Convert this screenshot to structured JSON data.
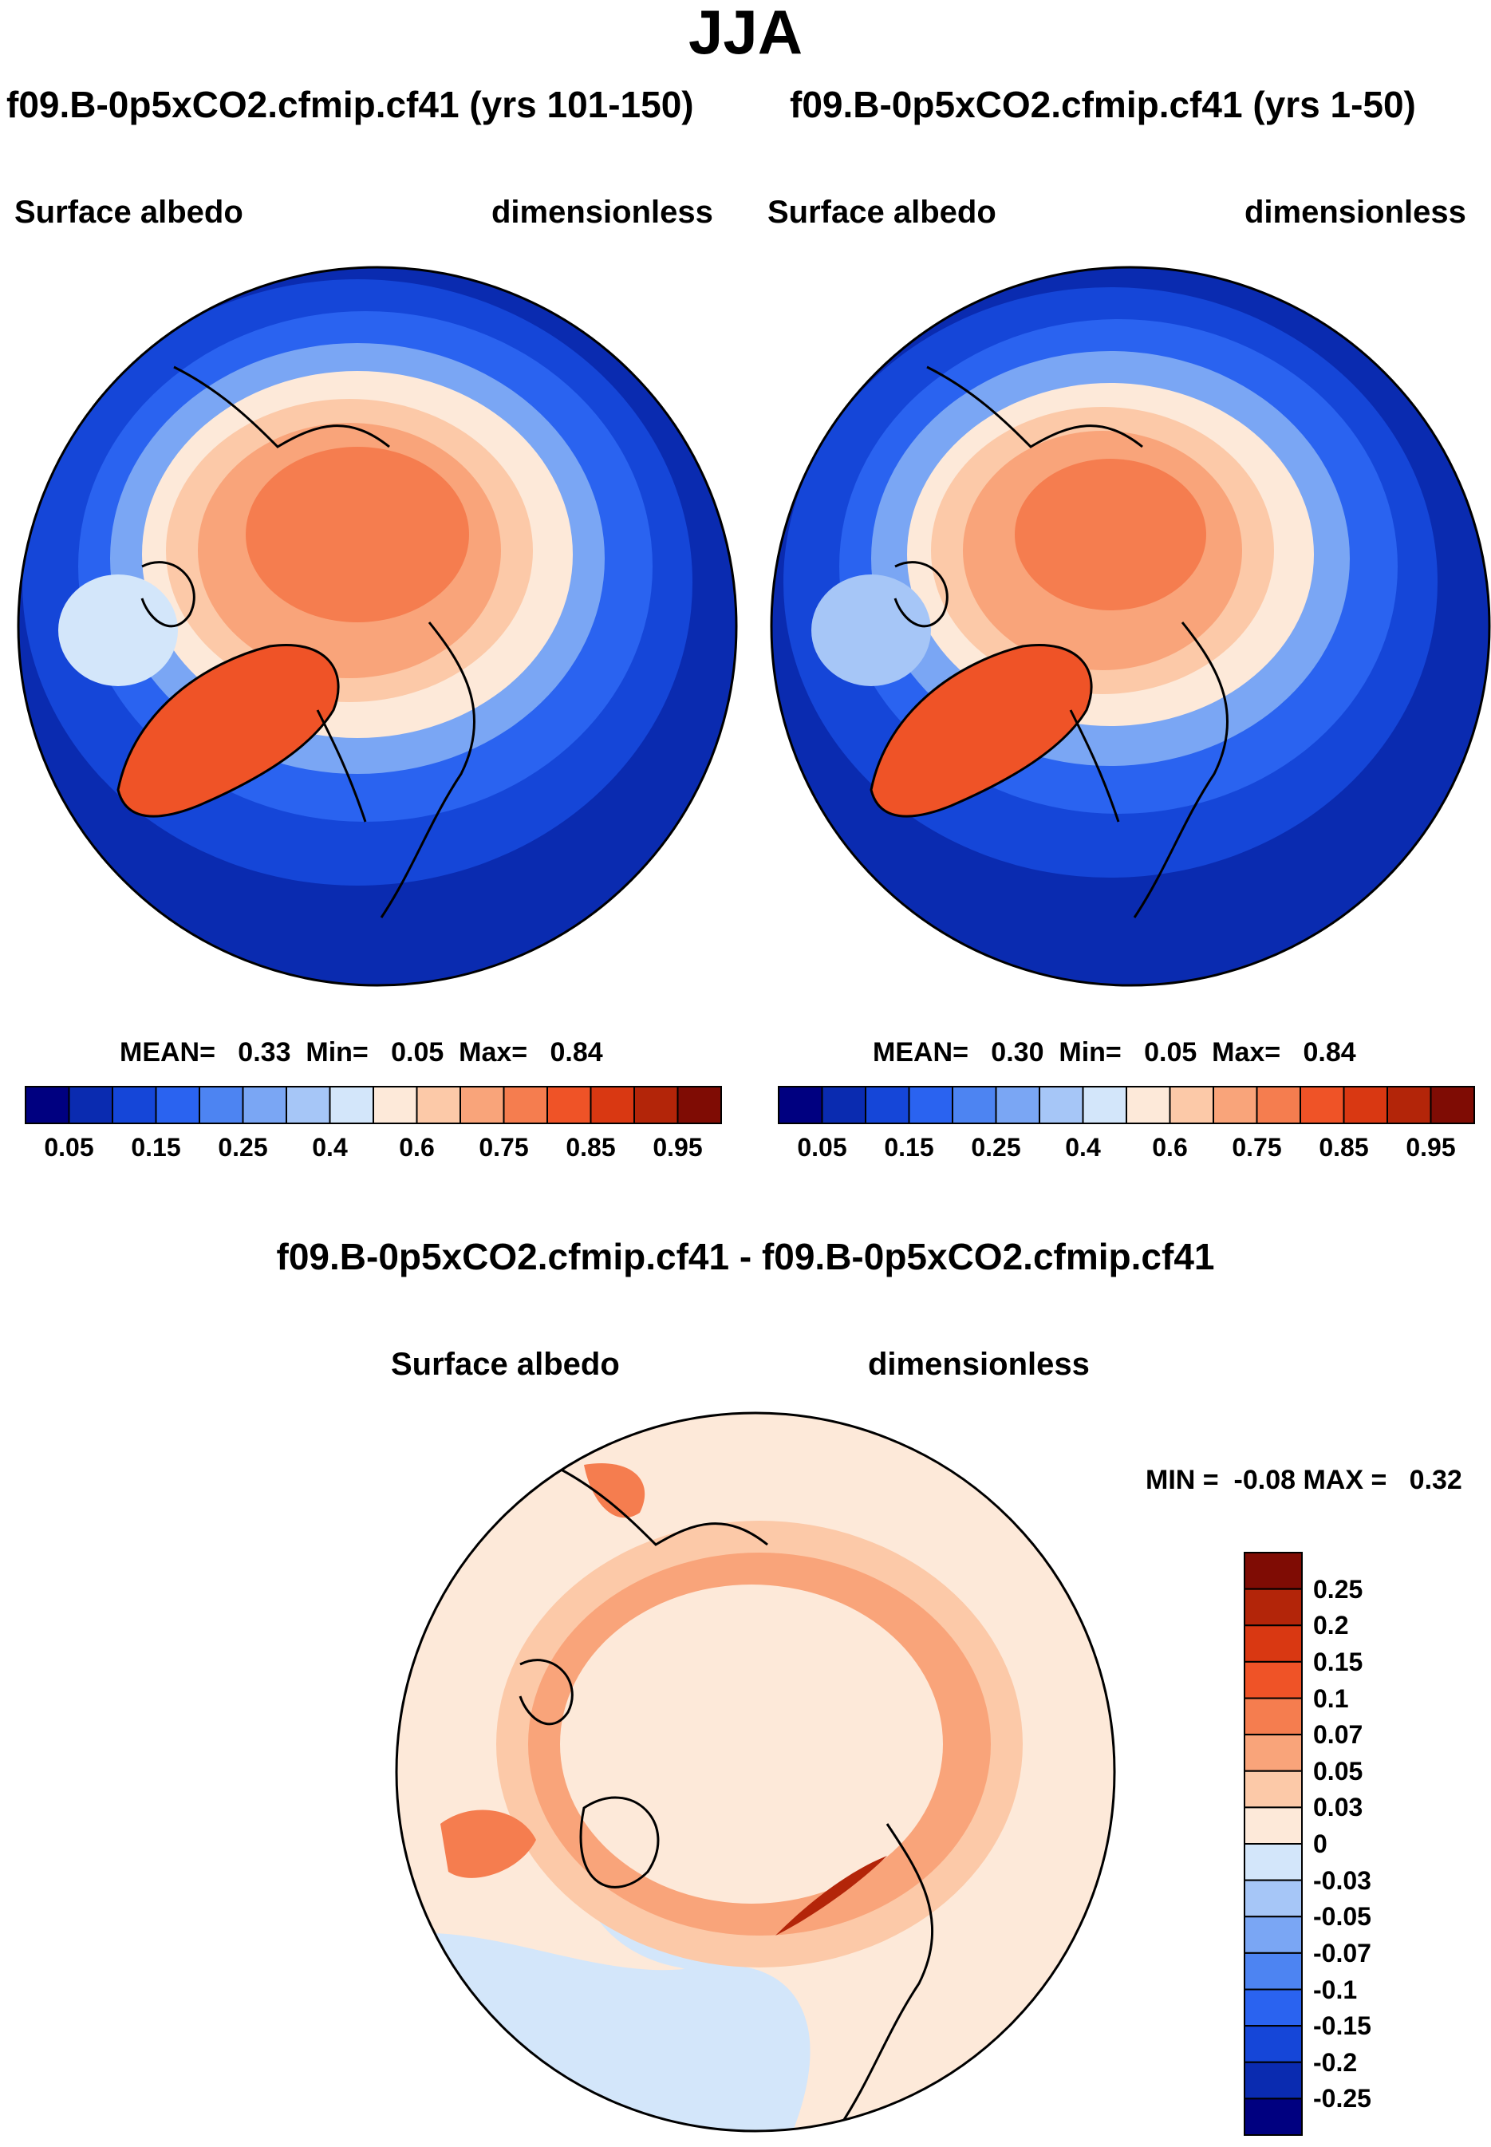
{
  "page_title": "JJA",
  "panels": [
    {
      "case_title": "f09.B-0p5xCO2.cfmip.cf41 (yrs 101-150)",
      "variable": "Surface albedo",
      "units": "dimensionless",
      "stats": "MEAN=   0.33  Min=   0.05  Max=   0.84"
    },
    {
      "case_title": "f09.B-0p5xCO2.cfmip.cf41 (yrs 1-50)",
      "variable": "Surface albedo",
      "units": "dimensionless",
      "stats": "MEAN=   0.30  Min=   0.05  Max=   0.84"
    }
  ],
  "top_colorbar": {
    "colors": [
      "#000080",
      "#0a2bb0",
      "#1546d8",
      "#2a63f0",
      "#4d84f2",
      "#7aa6f4",
      "#a6c6f7",
      "#d3e6fa",
      "#fde9d9",
      "#fcc9a8",
      "#f9a47a",
      "#f57d4f",
      "#ef5327",
      "#d93812",
      "#b32509",
      "#7f0c04"
    ],
    "ticks": [
      "0.05",
      "0.15",
      "0.25",
      "0.4",
      "0.6",
      "0.75",
      "0.85",
      "0.95"
    ]
  },
  "diff_panel": {
    "title": "f09.B-0p5xCO2.cfmip.cf41 - f09.B-0p5xCO2.cfmip.cf41",
    "variable": "Surface albedo",
    "units": "dimensionless",
    "stats": "MIN =  -0.08 MAX =   0.32"
  },
  "diff_colorbar": {
    "colors": [
      "#7f0c04",
      "#b32509",
      "#d93812",
      "#ef5327",
      "#f57d4f",
      "#f9a47a",
      "#fcc9a8",
      "#fde9d9",
      "#d3e6fa",
      "#a6c6f7",
      "#7aa6f4",
      "#4d84f2",
      "#2a63f0",
      "#1546d8",
      "#0a2bb0",
      "#000080"
    ],
    "ticks": [
      "0.25",
      "0.2",
      "0.15",
      "0.1",
      "0.07",
      "0.05",
      "0.03",
      "0",
      "-0.03",
      "-0.05",
      "-0.07",
      "-0.1",
      "-0.15",
      "-0.2",
      "-0.25"
    ]
  }
}
